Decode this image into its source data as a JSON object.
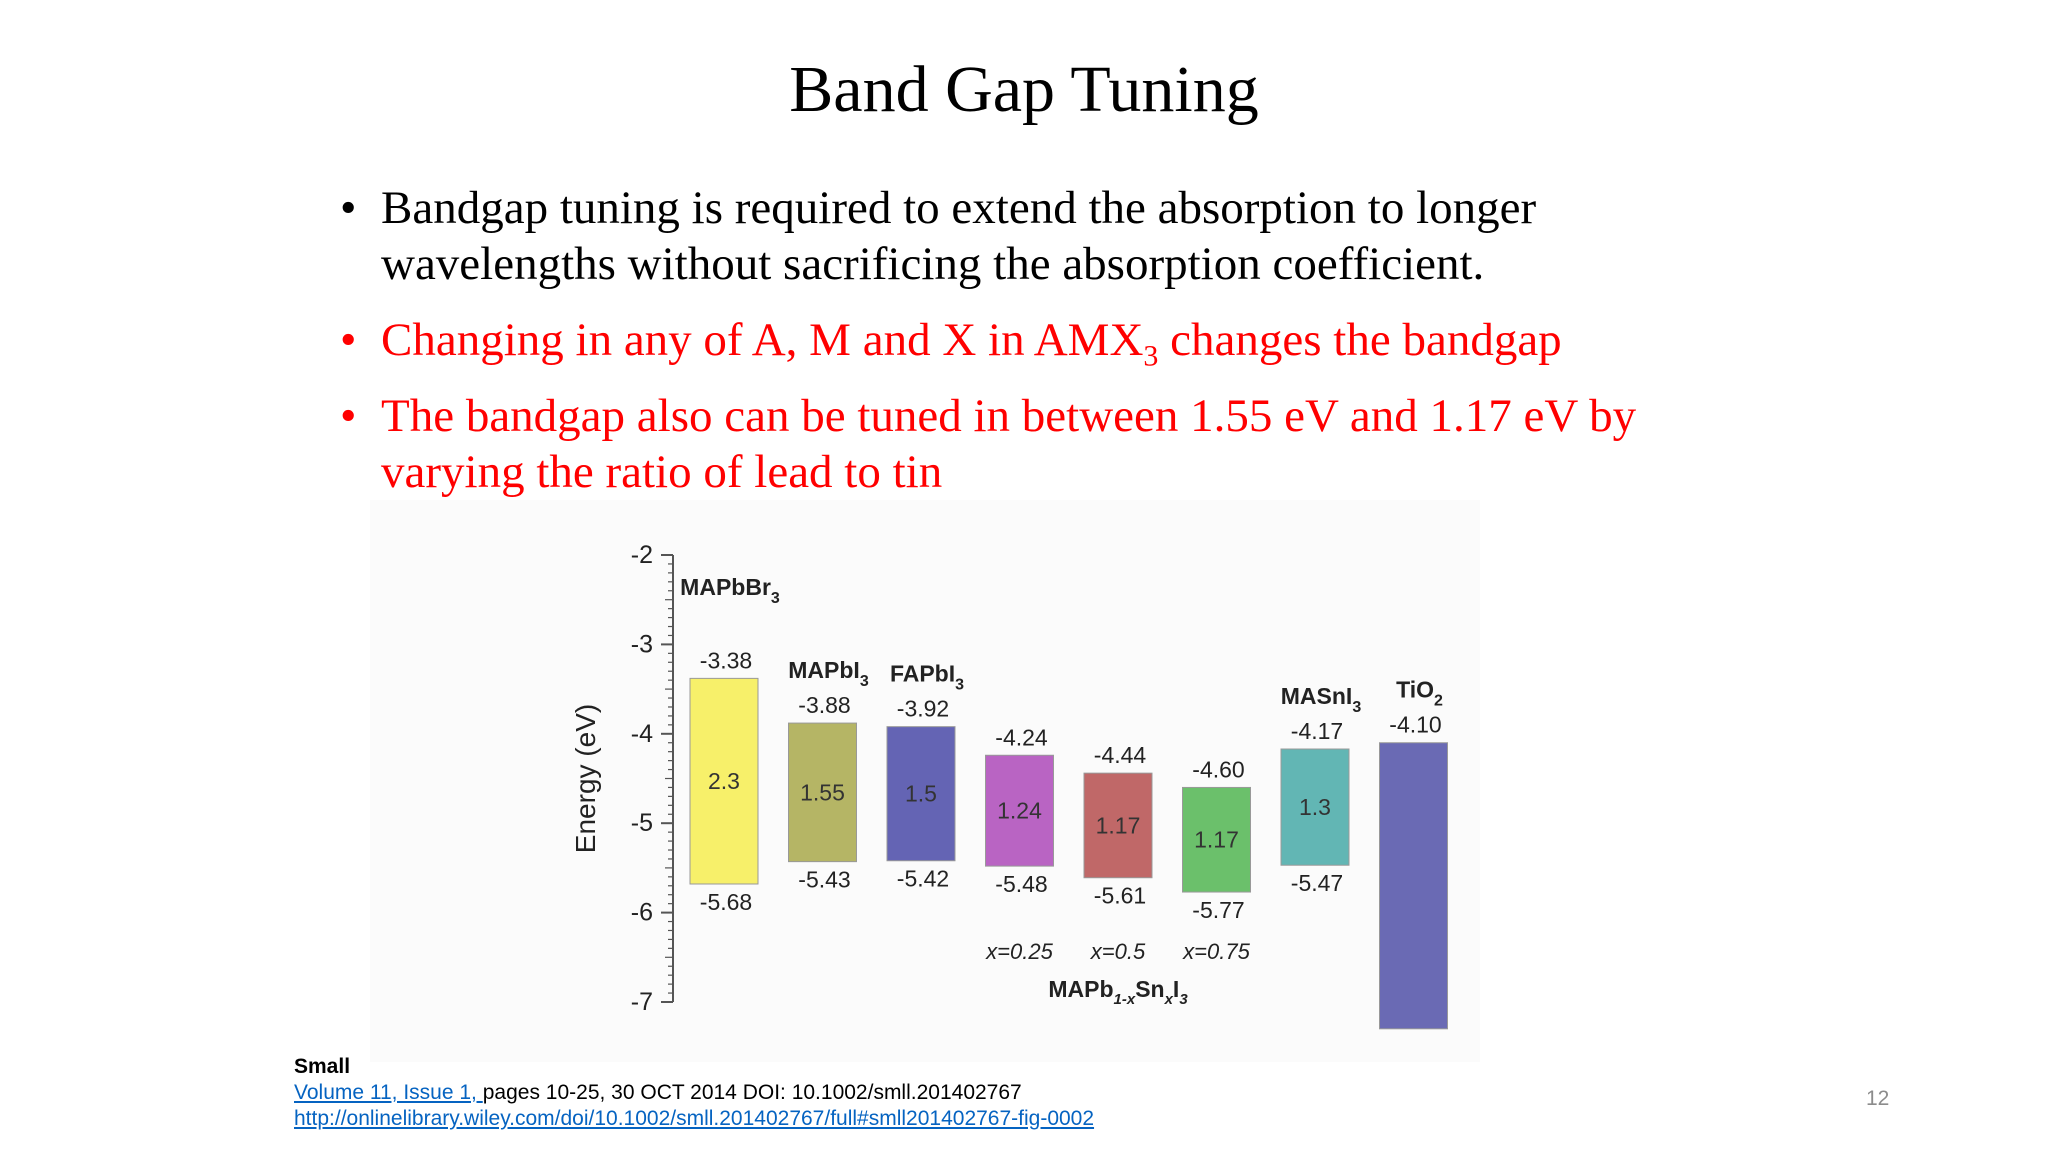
{
  "slide": {
    "title": "Band Gap Tuning",
    "bullet_glyph": "•",
    "bullets": [
      {
        "text": " Bandgap tuning is required to extend the absorption to longer wavelengths without sacrificing the absorption coefficient.",
        "color": "#000000"
      },
      {
        "text_pre": "Changing in any of A, M and X in AMX",
        "sub": "3",
        "text_post": " changes the bandgap",
        "color": "#ff0000"
      },
      {
        "text": "The bandgap also can be tuned in between 1.55 eV and 1.17 eV by varying the ratio of lead to tin",
        "color": "#ff0000"
      }
    ],
    "page_number": "12"
  },
  "reference": {
    "journal": "Small",
    "volume_link": "Volume 11, Issue 1, ",
    "details": "pages 10-25, 30 OCT 2014 DOI: 10.1002/smll.201402767",
    "url": "http://onlinelibrary.wiley.com/doi/10.1002/smll.201402767/full#smll201402767-fig-0002"
  },
  "chart_data": {
    "type": "bar",
    "ylabel": "Energy (eV)",
    "ylim": [
      -7,
      -2
    ],
    "yticks": [
      -2,
      -3,
      -4,
      -5,
      -6,
      -7
    ],
    "group_label": {
      "base": "MAPb",
      "sub1": "1-x",
      "mid": "Sn",
      "sub2": "x",
      "end": "I",
      "sub3": "3"
    },
    "series": [
      {
        "name": "MAPbBr",
        "name_sub": "3",
        "cb": -3.38,
        "vb": -5.68,
        "cb_label": "-3.38",
        "vb_label": "-5.68",
        "gap": "2.3",
        "color": "#f7f06a",
        "x_label": ""
      },
      {
        "name": "MAPbI",
        "name_sub": "3",
        "cb": -3.88,
        "vb": -5.43,
        "cb_label": "-3.88",
        "vb_label": "-5.43",
        "gap": "1.55",
        "color": "#b5b565",
        "x_label": ""
      },
      {
        "name": "FAPbI",
        "name_sub": "3",
        "cb": -3.92,
        "vb": -5.42,
        "cb_label": "-3.92",
        "vb_label": "-5.42",
        "gap": "1.5",
        "color": "#6464b4",
        "x_label": ""
      },
      {
        "name": "",
        "name_sub": "",
        "cb": -4.24,
        "vb": -5.48,
        "cb_label": "-4.24",
        "vb_label": "-5.48",
        "gap": "1.24",
        "color": "#b964c3",
        "x_label": "x=0.25"
      },
      {
        "name": "",
        "name_sub": "",
        "cb": -4.44,
        "vb": -5.61,
        "cb_label": "-4.44",
        "vb_label": "-5.61",
        "gap": "1.17",
        "color": "#c06868",
        "x_label": "x=0.5"
      },
      {
        "name": "",
        "name_sub": "",
        "cb": -4.6,
        "vb": -5.77,
        "cb_label": "-4.60",
        "vb_label": "-5.77",
        "gap": "1.17",
        "color": "#6bc06b",
        "x_label": "x=0.75"
      },
      {
        "name": "MASnI",
        "name_sub": "3",
        "cb": -4.17,
        "vb": -5.47,
        "cb_label": "-4.17",
        "vb_label": "-5.47",
        "gap": "1.3",
        "color": "#62b6b4",
        "x_label": ""
      },
      {
        "name": "TiO",
        "name_sub": "2",
        "cb": -4.1,
        "vb": -7.3,
        "cb_label": "-4.10",
        "vb_label": "",
        "gap": "",
        "color": "#6a6ab4",
        "x_label": ""
      }
    ]
  }
}
